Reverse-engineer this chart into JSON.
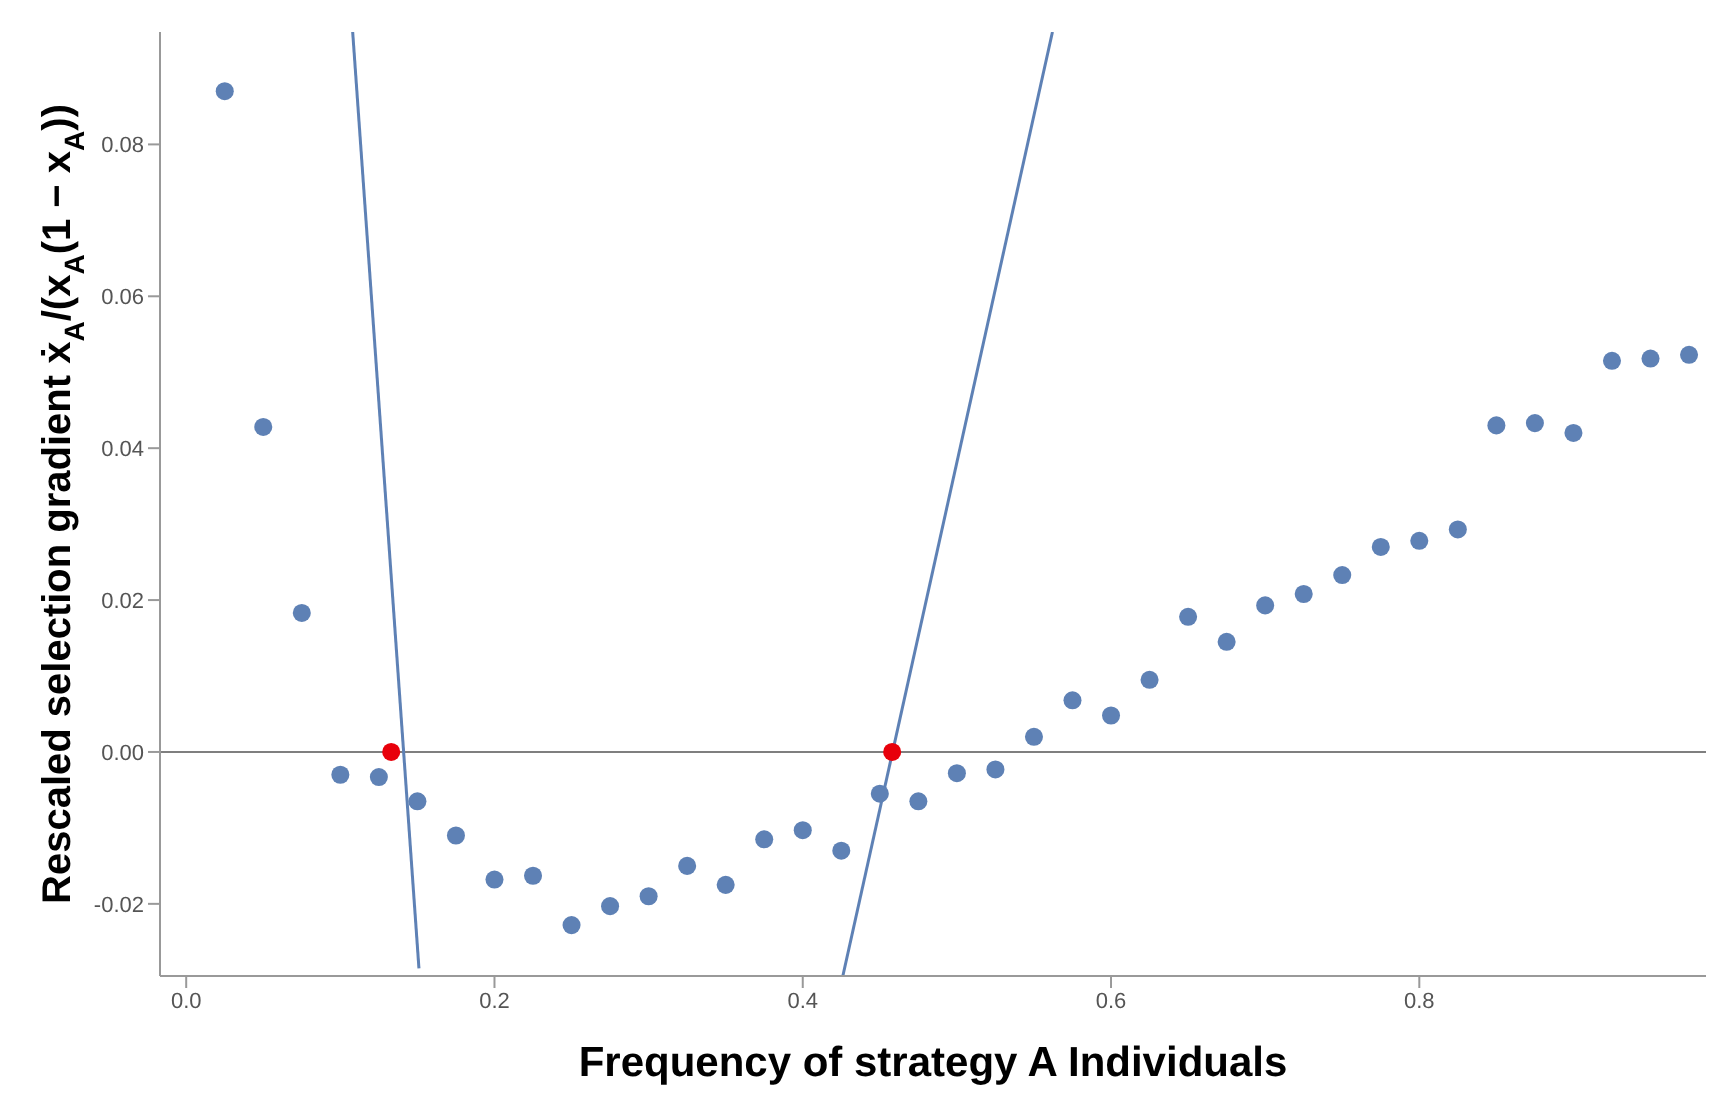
{
  "chart_data": {
    "type": "scatter",
    "xlabel": "Frequency of strategy A Individuals",
    "ylabel": "Rescaled selection gradient   ẋ$_{A}$/(x$_{A}$(1 − x$_{A}$))",
    "xlim": [
      -0.017,
      0.986
    ],
    "ylim": [
      -0.0295,
      0.0948
    ],
    "xticks": [
      {
        "value": 0,
        "label": "0.0"
      },
      {
        "value": 0.2,
        "label": "0.2"
      },
      {
        "value": 0.4,
        "label": "0.4"
      },
      {
        "value": 0.6,
        "label": "0.6"
      },
      {
        "value": 0.8,
        "label": "0.8"
      }
    ],
    "yticks": [
      {
        "value": -0.02,
        "label": "-0.02"
      },
      {
        "value": 0,
        "label": "0.00"
      },
      {
        "value": 0.02,
        "label": "0.02"
      },
      {
        "value": 0.04,
        "label": "0.04"
      },
      {
        "value": 0.06,
        "label": "0.06"
      },
      {
        "value": 0.08,
        "label": "0.08"
      }
    ],
    "grid": false,
    "legend": false,
    "marker": "circle",
    "ref_lines": [
      {
        "axis": "y",
        "value": 0,
        "color": "#7f7f7f"
      }
    ],
    "series": [
      {
        "type": "line",
        "color": "#5e81b5",
        "marker": "none",
        "x": [
          0.108,
          0.151
        ],
        "values": [
          0.0948,
          -0.0285
        ]
      },
      {
        "type": "line",
        "color": "#5e81b5",
        "marker": "none",
        "x": [
          0.426,
          0.562
        ],
        "values": [
          -0.0295,
          0.0948
        ]
      },
      {
        "color": "#5e81b5",
        "x": [
          0.025,
          0.05,
          0.075,
          0.1,
          0.125,
          0.15,
          0.175,
          0.2,
          0.225,
          0.25,
          0.275,
          0.3,
          0.325,
          0.35,
          0.375,
          0.4,
          0.425,
          0.45,
          0.475,
          0.5,
          0.525,
          0.55,
          0.575,
          0.6,
          0.625,
          0.65,
          0.675,
          0.7,
          0.725,
          0.75,
          0.775,
          0.8,
          0.825,
          0.85,
          0.875,
          0.9,
          0.925,
          0.95,
          0.975
        ],
        "values": [
          0.087,
          0.0428,
          0.0183,
          -0.003,
          -0.0033,
          -0.0065,
          -0.011,
          -0.0168,
          -0.0163,
          -0.0228,
          -0.0203,
          -0.019,
          -0.015,
          -0.0175,
          -0.0115,
          -0.0103,
          -0.013,
          -0.0055,
          -0.0065,
          -0.0028,
          -0.0023,
          0.002,
          0.0068,
          0.0048,
          0.0095,
          0.0178,
          0.0145,
          0.0193,
          0.0208,
          0.0233,
          0.027,
          0.0278,
          0.0293,
          0.043,
          0.0433,
          0.042,
          0.0515,
          0.0518,
          0.0523
        ]
      },
      {
        "color": "#e8000b",
        "x": [
          0.133,
          0.458
        ],
        "values": [
          0,
          0
        ]
      }
    ]
  }
}
